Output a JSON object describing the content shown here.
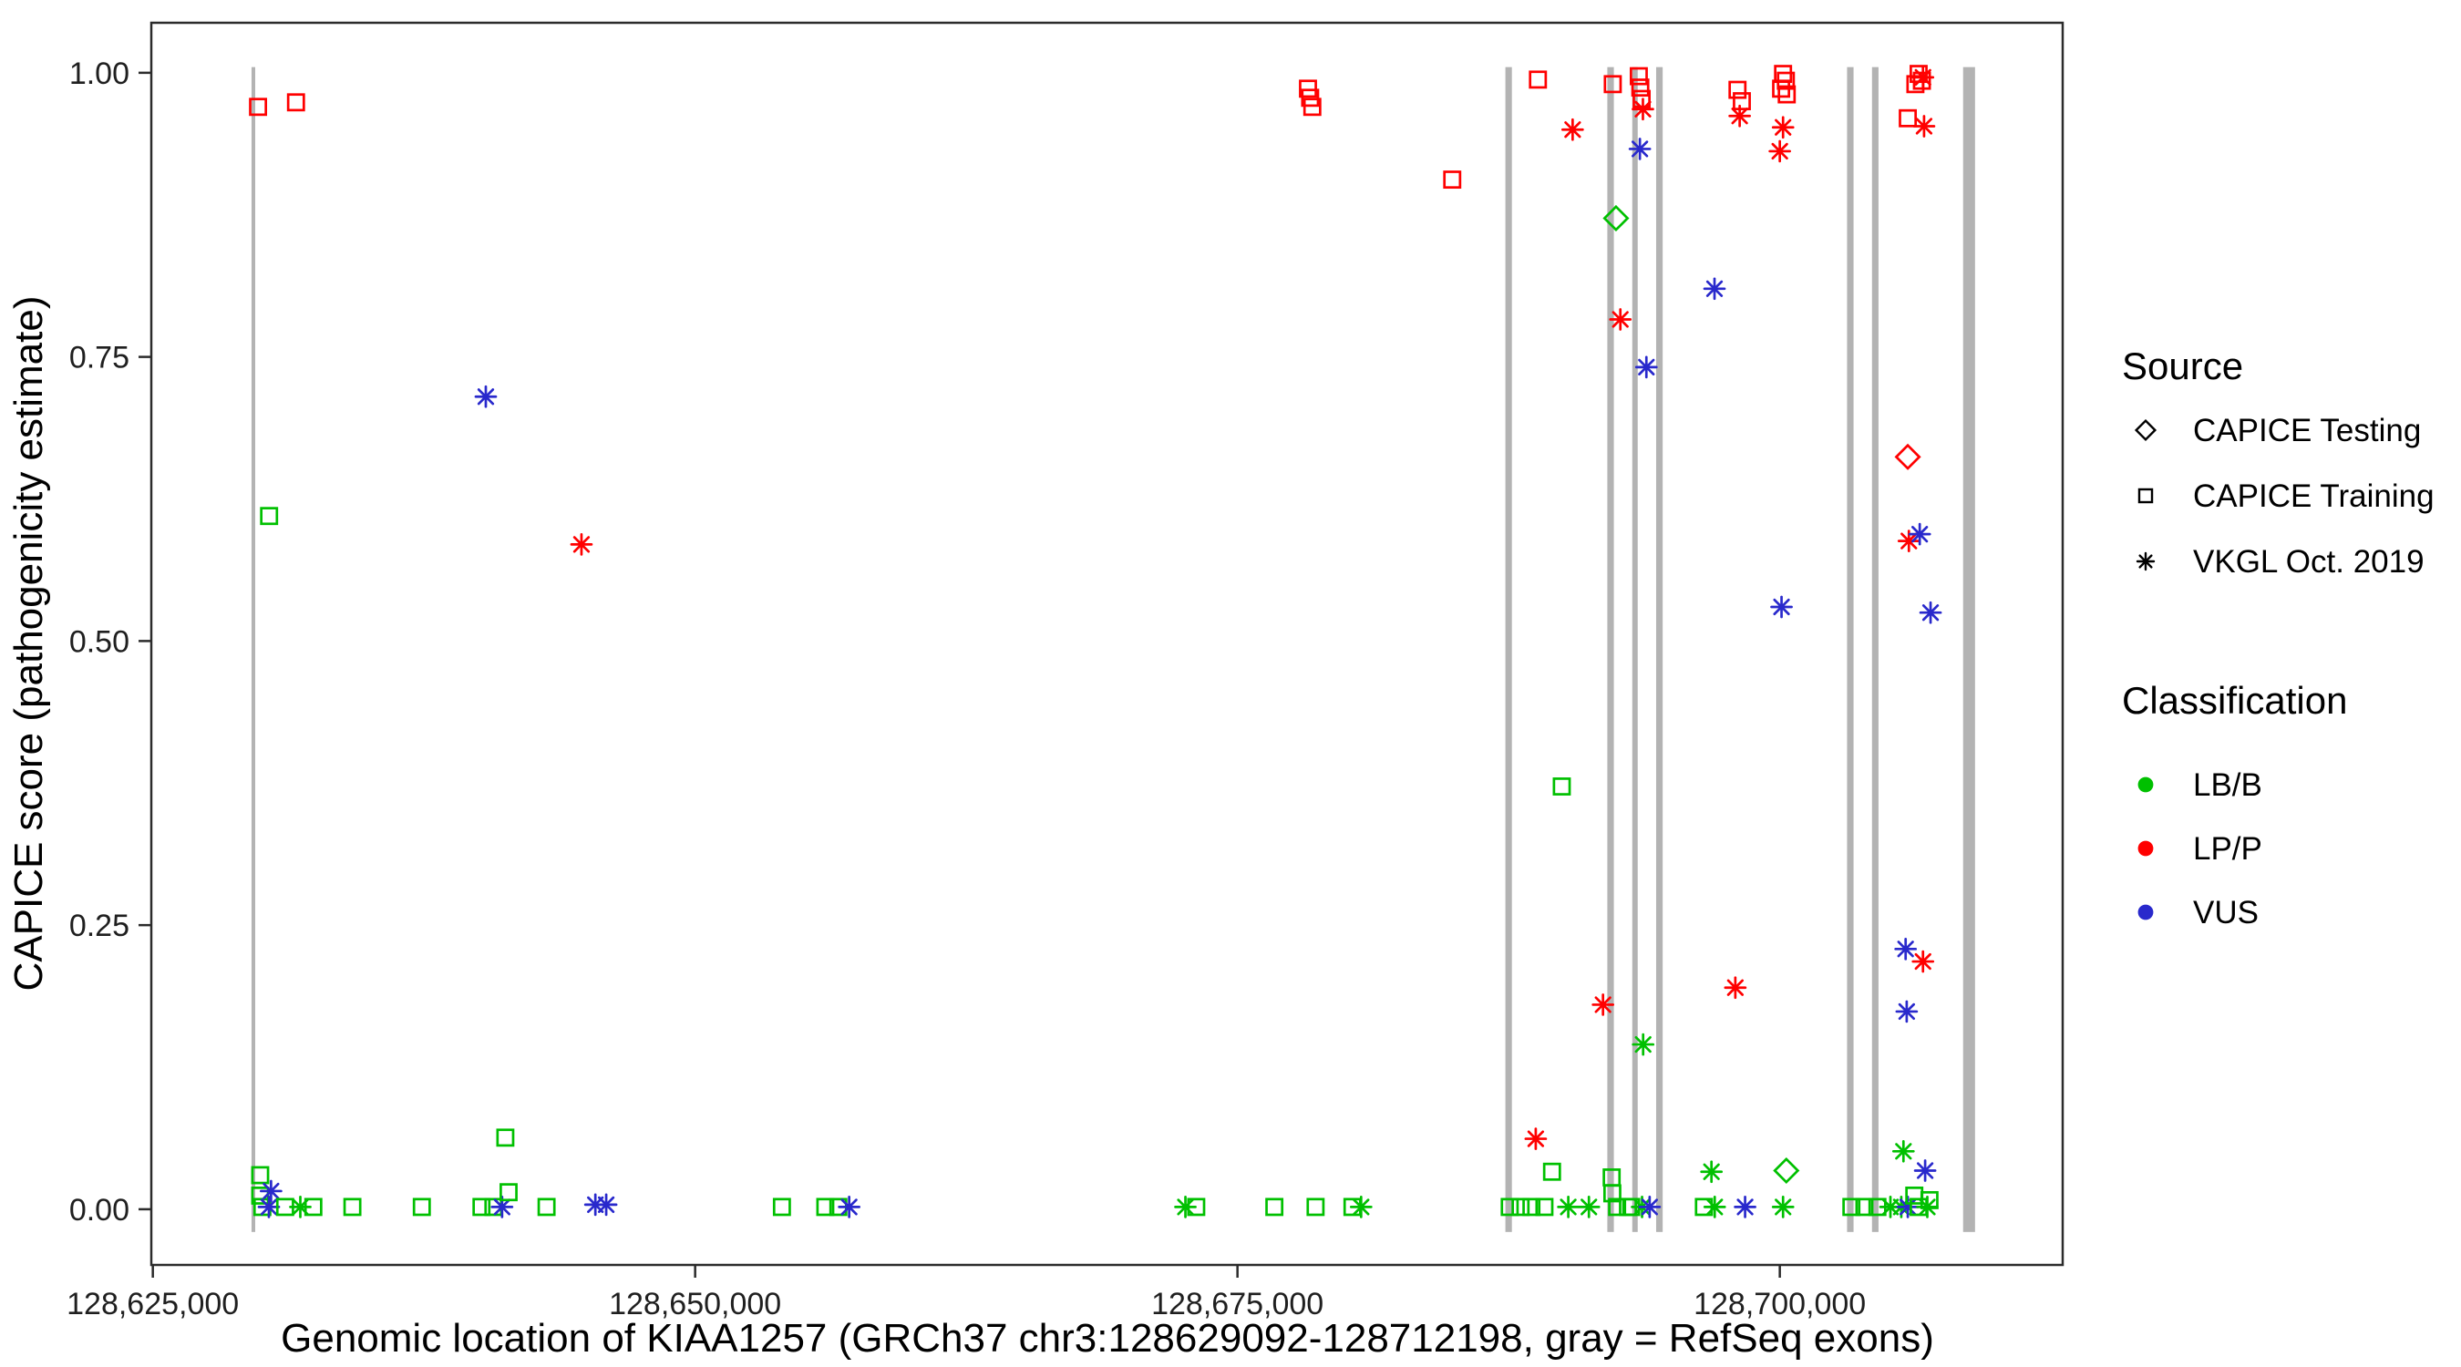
{
  "figure": {
    "x_axis": {
      "title": "Genomic location of KIAA1257 (GRCh37 chr3:128629092-128712198, gray = RefSeq exons)",
      "domain": [
        128624930,
        128713040
      ],
      "ticks": [
        {
          "value": 128625000,
          "label": "128,625,000"
        },
        {
          "value": 128650000,
          "label": "128,650,000"
        },
        {
          "value": 128675000,
          "label": "128,675,000"
        },
        {
          "value": 128700000,
          "label": "128,700,000"
        }
      ]
    },
    "y_axis": {
      "title": "CAPICE score (pathogenicity estimate)",
      "domain": [
        -0.049,
        1.044
      ],
      "ticks": [
        {
          "value": 0.0,
          "label": "0.00"
        },
        {
          "value": 0.25,
          "label": "0.25"
        },
        {
          "value": 0.5,
          "label": "0.50"
        },
        {
          "value": 0.75,
          "label": "0.75"
        },
        {
          "value": 1.0,
          "label": "1.00"
        }
      ]
    },
    "legend": {
      "source": {
        "title": "Source",
        "items": [
          {
            "label": "CAPICE Testing",
            "marker": "diamond"
          },
          {
            "label": "CAPICE Training",
            "marker": "square"
          },
          {
            "label": "VKGL Oct. 2019",
            "marker": "asterisk"
          }
        ]
      },
      "classification": {
        "title": "Classification",
        "items": [
          {
            "label": "LB/B",
            "color": "#00c000"
          },
          {
            "label": "LP/P",
            "color": "#ff0000"
          },
          {
            "label": "VUS",
            "color": "#2929cc"
          }
        ]
      }
    },
    "colors": {
      "LB/B": "#00c000",
      "LP/P": "#ff0000",
      "VUS": "#2929cc",
      "exon": "#b3b3b3",
      "axis": "#2b2b2b"
    }
  },
  "chart_data": {
    "type": "scatter",
    "title": "",
    "xlabel": "Genomic location of KIAA1257 (GRCh37 chr3:128629092-128712198, gray = RefSeq exons)",
    "ylabel": "CAPICE score (pathogenicity estimate)",
    "x_unit": "GRCh37 chr3 position (bp)",
    "y_unit": "CAPICE score (pathogenicity estimate)",
    "xlim": [
      128624930,
      128713040
    ],
    "ylim": [
      -0.049,
      1.044
    ],
    "grid": false,
    "legend_position": "right",
    "marker_by_source": {
      "CAPICE Testing": "diamond",
      "CAPICE Training": "square",
      "VKGL Oct. 2019": "asterisk"
    },
    "exons": [
      [
        128629550,
        128629720
      ],
      [
        128687350,
        128687650
      ],
      [
        128692050,
        128692350
      ],
      [
        128693200,
        128693450
      ],
      [
        128694300,
        128694600
      ],
      [
        128703100,
        128703400
      ],
      [
        128704250,
        128704550
      ],
      [
        128708450,
        128709000
      ]
    ],
    "points_format": [
      "position_bp",
      "capice_score",
      "classification",
      "source"
    ],
    "points": [
      [
        128629850,
        0.97,
        "LP/P",
        "CAPICE Training"
      ],
      [
        128631600,
        0.974,
        "LP/P",
        "CAPICE Training"
      ],
      [
        128630360,
        0.61,
        "LB/B",
        "CAPICE Training"
      ],
      [
        128629950,
        0.03,
        "LB/B",
        "CAPICE Training"
      ],
      [
        128629950,
        0.012,
        "LB/B",
        "CAPICE Training"
      ],
      [
        128630050,
        0.002,
        "LB/B",
        "CAPICE Training"
      ],
      [
        128630450,
        0.016,
        "VUS",
        "VKGL Oct. 2019"
      ],
      [
        128630350,
        0.002,
        "VUS",
        "VKGL Oct. 2019"
      ],
      [
        128631100,
        0.002,
        "LB/B",
        "CAPICE Training"
      ],
      [
        128631800,
        0.002,
        "LB/B",
        "VKGL Oct. 2019"
      ],
      [
        128632400,
        0.002,
        "LB/B",
        "CAPICE Training"
      ],
      [
        128634200,
        0.002,
        "LB/B",
        "CAPICE Training"
      ],
      [
        128637400,
        0.002,
        "LB/B",
        "CAPICE Training"
      ],
      [
        128640350,
        0.715,
        "VUS",
        "VKGL Oct. 2019"
      ],
      [
        128640150,
        0.002,
        "LB/B",
        "CAPICE Training"
      ],
      [
        128640700,
        0.002,
        "LB/B",
        "CAPICE Training"
      ],
      [
        128641100,
        0.002,
        "VUS",
        "VKGL Oct. 2019"
      ],
      [
        128641250,
        0.063,
        "LB/B",
        "CAPICE Training"
      ],
      [
        128641400,
        0.015,
        "LB/B",
        "CAPICE Training"
      ],
      [
        128643150,
        0.002,
        "LB/B",
        "CAPICE Training"
      ],
      [
        128644760,
        0.585,
        "LP/P",
        "VKGL Oct. 2019"
      ],
      [
        128645400,
        0.004,
        "VUS",
        "VKGL Oct. 2019"
      ],
      [
        128645900,
        0.004,
        "VUS",
        "VKGL Oct. 2019"
      ],
      [
        128654000,
        0.002,
        "LB/B",
        "CAPICE Training"
      ],
      [
        128656000,
        0.002,
        "LB/B",
        "CAPICE Training"
      ],
      [
        128656600,
        0.002,
        "LB/B",
        "CAPICE Training"
      ],
      [
        128657100,
        0.002,
        "VUS",
        "VKGL Oct. 2019"
      ],
      [
        128672600,
        0.002,
        "LB/B",
        "VKGL Oct. 2019"
      ],
      [
        128673100,
        0.002,
        "LB/B",
        "CAPICE Training"
      ],
      [
        128676700,
        0.002,
        "LB/B",
        "CAPICE Training"
      ],
      [
        128678250,
        0.986,
        "LP/P",
        "CAPICE Training"
      ],
      [
        128678350,
        0.978,
        "LP/P",
        "CAPICE Training"
      ],
      [
        128678450,
        0.97,
        "LP/P",
        "CAPICE Training"
      ],
      [
        128678600,
        0.002,
        "LB/B",
        "CAPICE Training"
      ],
      [
        128680300,
        0.002,
        "LB/B",
        "CAPICE Training"
      ],
      [
        128680700,
        0.002,
        "LB/B",
        "VKGL Oct. 2019"
      ],
      [
        128684900,
        0.906,
        "LP/P",
        "CAPICE Training"
      ],
      [
        128687550,
        0.002,
        "LB/B",
        "CAPICE Training"
      ],
      [
        128688050,
        0.002,
        "LB/B",
        "CAPICE Training"
      ],
      [
        128688550,
        0.002,
        "LB/B",
        "CAPICE Training"
      ],
      [
        128688750,
        0.062,
        "LP/P",
        "VKGL Oct. 2019"
      ],
      [
        128688850,
        0.994,
        "LP/P",
        "CAPICE Training"
      ],
      [
        128689150,
        0.002,
        "LB/B",
        "CAPICE Training"
      ],
      [
        128689500,
        0.033,
        "LB/B",
        "CAPICE Training"
      ],
      [
        128689950,
        0.372,
        "LB/B",
        "CAPICE Training"
      ],
      [
        128690250,
        0.002,
        "LB/B",
        "VKGL Oct. 2019"
      ],
      [
        128690450,
        0.95,
        "LP/P",
        "VKGL Oct. 2019"
      ],
      [
        128691200,
        0.002,
        "LB/B",
        "VKGL Oct. 2019"
      ],
      [
        128691850,
        0.18,
        "LP/P",
        "VKGL Oct. 2019"
      ],
      [
        128692250,
        0.028,
        "LB/B",
        "CAPICE Training"
      ],
      [
        128692280,
        0.014,
        "LB/B",
        "CAPICE Training"
      ],
      [
        128692300,
        0.99,
        "LP/P",
        "CAPICE Training"
      ],
      [
        128692450,
        0.872,
        "LB/B",
        "CAPICE Testing"
      ],
      [
        128692500,
        0.002,
        "LB/B",
        "CAPICE Training"
      ],
      [
        128692650,
        0.783,
        "LP/P",
        "VKGL Oct. 2019"
      ],
      [
        128693000,
        0.002,
        "LB/B",
        "CAPICE Training"
      ],
      [
        128693150,
        0.002,
        "LB/B",
        "CAPICE Training"
      ],
      [
        128693500,
        0.997,
        "LP/P",
        "CAPICE Training"
      ],
      [
        128693570,
        0.987,
        "LP/P",
        "CAPICE Training"
      ],
      [
        128693630,
        0.977,
        "LP/P",
        "CAPICE Training"
      ],
      [
        128693690,
        0.968,
        "LP/P",
        "VKGL Oct. 2019"
      ],
      [
        128693550,
        0.933,
        "VUS",
        "VKGL Oct. 2019"
      ],
      [
        128693850,
        0.741,
        "VUS",
        "VKGL Oct. 2019"
      ],
      [
        128693700,
        0.145,
        "LB/B",
        "VKGL Oct. 2019"
      ],
      [
        128693650,
        0.002,
        "LB/B",
        "VKGL Oct. 2019"
      ],
      [
        128694000,
        0.002,
        "VUS",
        "VKGL Oct. 2019"
      ],
      [
        128696500,
        0.002,
        "LB/B",
        "CAPICE Training"
      ],
      [
        128696850,
        0.033,
        "LB/B",
        "VKGL Oct. 2019"
      ],
      [
        128696990,
        0.81,
        "VUS",
        "VKGL Oct. 2019"
      ],
      [
        128697000,
        0.002,
        "LB/B",
        "VKGL Oct. 2019"
      ],
      [
        128697950,
        0.195,
        "LP/P",
        "VKGL Oct. 2019"
      ],
      [
        128698050,
        0.985,
        "LP/P",
        "CAPICE Training"
      ],
      [
        128698250,
        0.975,
        "LP/P",
        "CAPICE Training"
      ],
      [
        128698150,
        0.962,
        "LP/P",
        "VKGL Oct. 2019"
      ],
      [
        128698400,
        0.002,
        "VUS",
        "VKGL Oct. 2019"
      ],
      [
        128700150,
        0.999,
        "LP/P",
        "CAPICE Training"
      ],
      [
        128700280,
        0.993,
        "LP/P",
        "CAPICE Training"
      ],
      [
        128700060,
        0.986,
        "LP/P",
        "CAPICE Training"
      ],
      [
        128700320,
        0.981,
        "LP/P",
        "CAPICE Training"
      ],
      [
        128700150,
        0.952,
        "LP/P",
        "VKGL Oct. 2019"
      ],
      [
        128700000,
        0.931,
        "LP/P",
        "VKGL Oct. 2019"
      ],
      [
        128700080,
        0.53,
        "VUS",
        "VKGL Oct. 2019"
      ],
      [
        128700300,
        0.034,
        "LB/B",
        "CAPICE Testing"
      ],
      [
        128700150,
        0.002,
        "LB/B",
        "VKGL Oct. 2019"
      ],
      [
        128703300,
        0.002,
        "LB/B",
        "CAPICE Training"
      ],
      [
        128703900,
        0.002,
        "LB/B",
        "CAPICE Training"
      ],
      [
        128704500,
        0.002,
        "LB/B",
        "CAPICE Training"
      ],
      [
        128705100,
        0.002,
        "LB/B",
        "VKGL Oct. 2019"
      ],
      [
        128705600,
        0.002,
        "LB/B",
        "VKGL Oct. 2019"
      ],
      [
        128705700,
        0.051,
        "LB/B",
        "VKGL Oct. 2019"
      ],
      [
        128705800,
        0.229,
        "VUS",
        "VKGL Oct. 2019"
      ],
      [
        128705850,
        0.174,
        "VUS",
        "VKGL Oct. 2019"
      ],
      [
        128705900,
        0.96,
        "LP/P",
        "CAPICE Training"
      ],
      [
        128705900,
        0.662,
        "LP/P",
        "CAPICE Testing"
      ],
      [
        128705950,
        0.588,
        "LP/P",
        "VKGL Oct. 2019"
      ],
      [
        128705900,
        0.002,
        "VUS",
        "VKGL Oct. 2019"
      ],
      [
        128706200,
        0.012,
        "LB/B",
        "CAPICE Training"
      ],
      [
        128706250,
        0.99,
        "LP/P",
        "CAPICE Training"
      ],
      [
        128706400,
        0.999,
        "LP/P",
        "CAPICE Training"
      ],
      [
        128706400,
        0.002,
        "LB/B",
        "CAPICE Training"
      ],
      [
        128706450,
        0.594,
        "VUS",
        "VKGL Oct. 2019"
      ],
      [
        128706550,
        0.993,
        "LP/P",
        "CAPICE Training"
      ],
      [
        128706600,
        0.996,
        "LP/P",
        "VKGL Oct. 2019"
      ],
      [
        128706600,
        0.218,
        "LP/P",
        "VKGL Oct. 2019"
      ],
      [
        128706650,
        0.953,
        "LP/P",
        "VKGL Oct. 2019"
      ],
      [
        128706700,
        0.034,
        "VUS",
        "VKGL Oct. 2019"
      ],
      [
        128706800,
        0.002,
        "LB/B",
        "VKGL Oct. 2019"
      ],
      [
        128706900,
        0.008,
        "LB/B",
        "CAPICE Training"
      ],
      [
        128706950,
        0.525,
        "VUS",
        "VKGL Oct. 2019"
      ]
    ]
  }
}
